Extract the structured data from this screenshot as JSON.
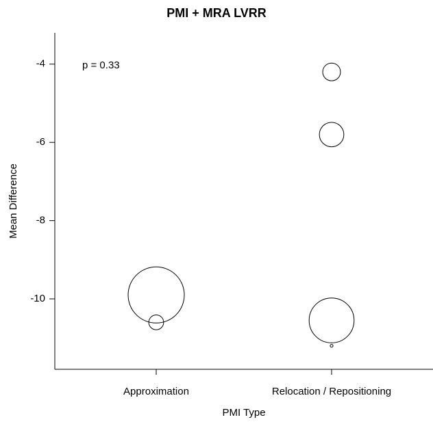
{
  "chart_data": {
    "type": "bubble",
    "title": "PMI + MRA LVRR",
    "x_label": "PMI Type",
    "y_label": "Mean Difference",
    "annotation": "p = 0.33",
    "categories": [
      "Approximation",
      "Relocation / Repositioning"
    ],
    "x": [
      "Approximation",
      "Approximation",
      "Relocation / Repositioning",
      "Relocation / Repositioning",
      "Relocation / Repositioning",
      "Relocation / Repositioning"
    ],
    "values": [
      -9.9,
      -10.6,
      -4.2,
      -5.8,
      -10.55,
      -11.2
    ],
    "sizes": [
      100,
      7,
      10,
      19,
      64,
      0.25
    ],
    "color": "#000000",
    "ylim": [
      -11.8,
      -3.2
    ],
    "yticks": [
      -10,
      -8,
      -6,
      -4
    ]
  }
}
